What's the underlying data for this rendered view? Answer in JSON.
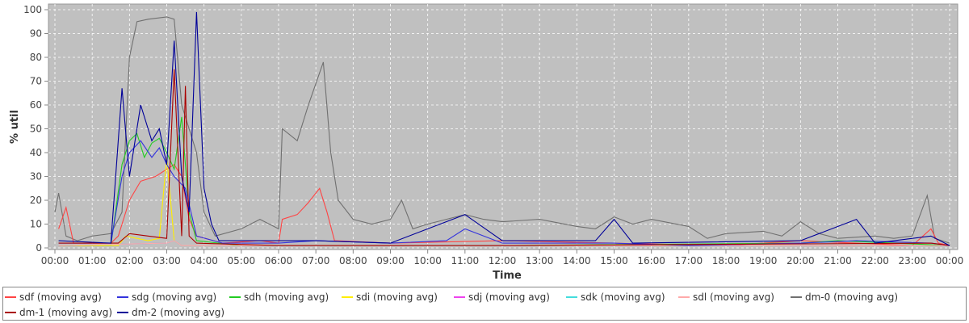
{
  "chart_data": {
    "type": "line",
    "title": "",
    "xlabel": "Time",
    "ylabel": "% util",
    "ylim": [
      0,
      100
    ],
    "yticks": [
      0,
      10,
      20,
      30,
      40,
      50,
      60,
      70,
      80,
      90,
      100
    ],
    "x_tick_labels": [
      "00:00",
      "01:00",
      "02:00",
      "03:00",
      "04:00",
      "05:00",
      "06:00",
      "07:00",
      "08:00",
      "09:00",
      "10:00",
      "11:00",
      "12:00",
      "13:00",
      "14:00",
      "15:00",
      "16:00",
      "17:00",
      "18:00",
      "19:00",
      "20:00",
      "21:00",
      "22:00",
      "23:00",
      "00:00"
    ],
    "grid": true,
    "legend_position": "bottom",
    "series": [
      {
        "name": "sdf (moving avg)",
        "color": "#ff4444",
        "points": [
          [
            0.1,
            8
          ],
          [
            0.3,
            17
          ],
          [
            0.5,
            2
          ],
          [
            1.5,
            2
          ],
          [
            1.7,
            5
          ],
          [
            2.0,
            20
          ],
          [
            2.3,
            28
          ],
          [
            2.7,
            30
          ],
          [
            3.0,
            33
          ],
          [
            3.2,
            35
          ],
          [
            3.4,
            30
          ],
          [
            3.6,
            12
          ],
          [
            3.8,
            5
          ],
          [
            4.5,
            2
          ],
          [
            5.5,
            3
          ],
          [
            6.0,
            2
          ],
          [
            6.1,
            12
          ],
          [
            6.5,
            14
          ],
          [
            6.8,
            19
          ],
          [
            7.1,
            25
          ],
          [
            7.3,
            15
          ],
          [
            7.5,
            3
          ],
          [
            9.0,
            2
          ],
          [
            12.0,
            3
          ],
          [
            15.0,
            2
          ],
          [
            18.0,
            1
          ],
          [
            20.0,
            3
          ],
          [
            23.0,
            1
          ],
          [
            23.5,
            8
          ],
          [
            23.7,
            2
          ],
          [
            24.0,
            1
          ]
        ]
      },
      {
        "name": "sdg (moving avg)",
        "color": "#3333dd",
        "points": [
          [
            0.1,
            2
          ],
          [
            1.5,
            2
          ],
          [
            1.8,
            30
          ],
          [
            2.0,
            40
          ],
          [
            2.3,
            45
          ],
          [
            2.6,
            38
          ],
          [
            2.8,
            42
          ],
          [
            3.0,
            35
          ],
          [
            3.2,
            30
          ],
          [
            3.5,
            25
          ],
          [
            3.8,
            5
          ],
          [
            4.5,
            2
          ],
          [
            6.0,
            2
          ],
          [
            7.0,
            3
          ],
          [
            9.0,
            2
          ],
          [
            10.5,
            3
          ],
          [
            11.0,
            8
          ],
          [
            12.0,
            2
          ],
          [
            15.0,
            2
          ],
          [
            17.0,
            1
          ],
          [
            20.0,
            2
          ],
          [
            21.5,
            3
          ],
          [
            23.5,
            2
          ],
          [
            24.0,
            1
          ]
        ]
      },
      {
        "name": "sdh (moving avg)",
        "color": "#22cc22",
        "points": [
          [
            0.1,
            1
          ],
          [
            1.5,
            1
          ],
          [
            1.8,
            35
          ],
          [
            2.0,
            45
          ],
          [
            2.2,
            48
          ],
          [
            2.4,
            38
          ],
          [
            2.6,
            44
          ],
          [
            2.8,
            46
          ],
          [
            3.0,
            40
          ],
          [
            3.2,
            33
          ],
          [
            3.4,
            55
          ],
          [
            3.6,
            15
          ],
          [
            3.8,
            3
          ],
          [
            5.0,
            1
          ],
          [
            12.0,
            1
          ],
          [
            20.0,
            2
          ],
          [
            21.0,
            3
          ],
          [
            24.0,
            1
          ]
        ]
      },
      {
        "name": "sdi (moving avg)",
        "color": "#ffee00",
        "points": [
          [
            0.1,
            1
          ],
          [
            1.7,
            1
          ],
          [
            1.9,
            5
          ],
          [
            2.2,
            4
          ],
          [
            2.5,
            3
          ],
          [
            2.8,
            4
          ],
          [
            3.0,
            38
          ],
          [
            3.2,
            3
          ],
          [
            3.4,
            1
          ],
          [
            24.0,
            1
          ]
        ]
      },
      {
        "name": "sdj (moving avg)",
        "color": "#ee44ee",
        "points": [
          [
            0.1,
            1
          ],
          [
            3.0,
            2
          ],
          [
            3.2,
            3
          ],
          [
            3.4,
            1
          ],
          [
            24.0,
            1
          ]
        ]
      },
      {
        "name": "sdk (moving avg)",
        "color": "#44dddd",
        "points": [
          [
            0.1,
            1
          ],
          [
            3.0,
            2
          ],
          [
            3.2,
            3
          ],
          [
            3.4,
            1
          ],
          [
            24.0,
            1
          ]
        ]
      },
      {
        "name": "sdl (moving avg)",
        "color": "#ffaaaa",
        "points": [
          [
            0.1,
            1
          ],
          [
            3.0,
            2
          ],
          [
            3.2,
            3
          ],
          [
            3.4,
            1
          ],
          [
            24.0,
            1
          ]
        ]
      },
      {
        "name": "dm-0 (moving avg)",
        "color": "#707070",
        "points": [
          [
            0.0,
            15
          ],
          [
            0.1,
            23
          ],
          [
            0.3,
            5
          ],
          [
            0.6,
            3
          ],
          [
            1.0,
            5
          ],
          [
            1.5,
            6
          ],
          [
            1.8,
            15
          ],
          [
            2.0,
            80
          ],
          [
            2.2,
            95
          ],
          [
            2.5,
            96
          ],
          [
            3.0,
            97
          ],
          [
            3.2,
            96
          ],
          [
            3.4,
            60
          ],
          [
            3.8,
            40
          ],
          [
            4.0,
            15
          ],
          [
            4.3,
            5
          ],
          [
            5.0,
            8
          ],
          [
            5.5,
            12
          ],
          [
            6.0,
            8
          ],
          [
            6.1,
            50
          ],
          [
            6.5,
            45
          ],
          [
            6.8,
            60
          ],
          [
            7.2,
            78
          ],
          [
            7.4,
            40
          ],
          [
            7.6,
            20
          ],
          [
            8.0,
            12
          ],
          [
            8.5,
            10
          ],
          [
            9.0,
            12
          ],
          [
            9.3,
            20
          ],
          [
            9.6,
            8
          ],
          [
            10.0,
            10
          ],
          [
            10.5,
            12
          ],
          [
            11.0,
            14
          ],
          [
            11.5,
            12
          ],
          [
            12.0,
            11
          ],
          [
            13.0,
            12
          ],
          [
            14.0,
            9
          ],
          [
            14.5,
            8
          ],
          [
            15.0,
            13
          ],
          [
            15.5,
            10
          ],
          [
            16.0,
            12
          ],
          [
            17.0,
            9
          ],
          [
            17.5,
            4
          ],
          [
            18.0,
            6
          ],
          [
            19.0,
            7
          ],
          [
            19.5,
            5
          ],
          [
            20.0,
            11
          ],
          [
            20.5,
            6
          ],
          [
            21.0,
            4
          ],
          [
            22.0,
            5
          ],
          [
            22.5,
            4
          ],
          [
            23.0,
            5
          ],
          [
            23.4,
            22
          ],
          [
            23.6,
            4
          ],
          [
            24.0,
            2
          ]
        ]
      },
      {
        "name": "dm-1 (moving avg)",
        "color": "#aa0000",
        "points": [
          [
            0.1,
            2
          ],
          [
            1.7,
            2
          ],
          [
            2.0,
            6
          ],
          [
            2.5,
            5
          ],
          [
            3.0,
            4
          ],
          [
            3.2,
            75
          ],
          [
            3.4,
            5
          ],
          [
            3.5,
            68
          ],
          [
            3.6,
            5
          ],
          [
            3.8,
            2
          ],
          [
            6.0,
            1
          ],
          [
            12.0,
            1
          ],
          [
            23.5,
            2
          ],
          [
            24.0,
            1
          ]
        ]
      },
      {
        "name": "dm-2 (moving avg)",
        "color": "#000099",
        "points": [
          [
            0.1,
            3
          ],
          [
            1.5,
            2
          ],
          [
            1.8,
            67
          ],
          [
            2.0,
            30
          ],
          [
            2.3,
            60
          ],
          [
            2.6,
            45
          ],
          [
            2.8,
            50
          ],
          [
            3.0,
            35
          ],
          [
            3.2,
            87
          ],
          [
            3.4,
            30
          ],
          [
            3.6,
            15
          ],
          [
            3.8,
            99
          ],
          [
            4.0,
            25
          ],
          [
            4.2,
            10
          ],
          [
            4.4,
            3
          ],
          [
            6.0,
            3
          ],
          [
            7.0,
            3
          ],
          [
            9.0,
            2
          ],
          [
            11.0,
            14
          ],
          [
            12.0,
            3
          ],
          [
            14.5,
            3
          ],
          [
            15.0,
            12
          ],
          [
            15.5,
            2
          ],
          [
            20.0,
            3
          ],
          [
            21.5,
            12
          ],
          [
            22.0,
            2
          ],
          [
            23.5,
            5
          ],
          [
            24.0,
            1
          ]
        ]
      }
    ]
  }
}
